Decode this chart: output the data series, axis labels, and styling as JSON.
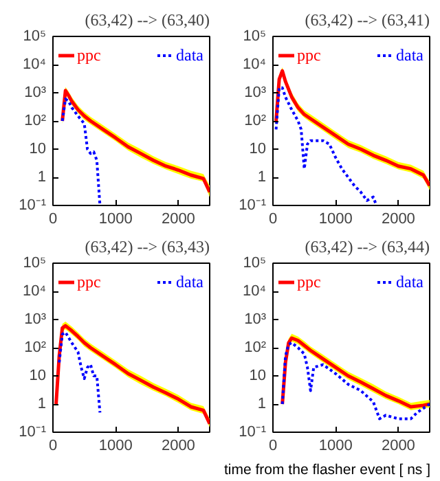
{
  "chart_data": [
    {
      "type": "line",
      "title": "(63,42) --> (63,40)",
      "xlim": [
        0,
        2500
      ],
      "xticks": [
        0,
        1000,
        2000
      ],
      "ylim": [
        0.1,
        100000
      ],
      "log": true,
      "legend": "top",
      "grid": false,
      "marker": "none",
      "yticks": [
        {
          "value": 0.1,
          "label": "10⁻¹"
        },
        1,
        10,
        {
          "value": 100,
          "label": "10²"
        },
        {
          "value": 1000,
          "label": "10³"
        },
        {
          "value": 10000,
          "label": "10⁴"
        },
        {
          "value": 100000,
          "label": "10⁵"
        }
      ],
      "series": [
        {
          "name": "ppc",
          "color": "#ff0000",
          "line_style": "solid",
          "x": [
            150,
            200,
            250,
            300,
            400,
            500,
            600,
            800,
            1000,
            1200,
            1400,
            1600,
            1800,
            2000,
            2200,
            2400,
            2500
          ],
          "values": [
            100,
            1200,
            800,
            500,
            250,
            150,
            100,
            50,
            25,
            12,
            7,
            4,
            2.5,
            1.8,
            1.2,
            0.9,
            0.3
          ],
          "upper": [
            140,
            1600,
            1100,
            700,
            350,
            210,
            140,
            70,
            35,
            17,
            10,
            5.6,
            3.5,
            2.5,
            1.7,
            1.3,
            0.5
          ],
          "lower": [
            75,
            900,
            600,
            380,
            190,
            110,
            75,
            38,
            19,
            9,
            5,
            3,
            1.9,
            1.3,
            0.9,
            0.7,
            0.2
          ]
        },
        {
          "name": "data",
          "color": "#0000ff",
          "line_style": "dotted",
          "x": [
            150,
            200,
            250,
            300,
            400,
            500,
            550,
            600,
            650,
            700,
            750
          ],
          "values": [
            100,
            600,
            500,
            300,
            150,
            80,
            10,
            7,
            8,
            4,
            0.1
          ]
        }
      ]
    },
    {
      "type": "line",
      "title": "(63,42) --> (63,41)",
      "xlim": [
        0,
        2500
      ],
      "xticks": [
        0,
        1000,
        2000
      ],
      "ylim": [
        0.1,
        100000
      ],
      "log": true,
      "legend": "top",
      "grid": false,
      "marker": "none",
      "yticks": [
        {
          "value": 0.1,
          "label": "10⁻¹"
        },
        1,
        10,
        {
          "value": 100,
          "label": "10²"
        },
        {
          "value": 1000,
          "label": "10³"
        },
        {
          "value": 10000,
          "label": "10⁴"
        },
        {
          "value": 100000,
          "label": "10⁵"
        }
      ],
      "series": [
        {
          "name": "ppc",
          "color": "#ff0000",
          "line_style": "solid",
          "x": [
            50,
            100,
            150,
            200,
            300,
            400,
            500,
            600,
            800,
            1000,
            1200,
            1400,
            1600,
            1800,
            2000,
            2200,
            2400,
            2500
          ],
          "values": [
            100,
            3000,
            6000,
            2500,
            700,
            300,
            170,
            120,
            60,
            30,
            15,
            10,
            6,
            4,
            2.5,
            2,
            1.2,
            0.5
          ],
          "upper": [
            140,
            4200,
            8000,
            3500,
            1000,
            420,
            240,
            170,
            85,
            42,
            21,
            14,
            8.5,
            5.6,
            3.5,
            2.8,
            1.7,
            0.7
          ],
          "lower": [
            75,
            2200,
            4500,
            1900,
            520,
            220,
            130,
            90,
            45,
            22,
            11,
            7.5,
            4.5,
            3,
            1.9,
            1.5,
            0.9,
            0.35
          ]
        },
        {
          "name": "data",
          "color": "#0000ff",
          "line_style": "dotted",
          "x": [
            50,
            100,
            150,
            200,
            300,
            400,
            450,
            500,
            550,
            600,
            800,
            900,
            1000,
            1100,
            1200,
            1300,
            1400,
            1500,
            1600,
            1650
          ],
          "values": [
            50,
            1500,
            1500,
            700,
            250,
            100,
            50,
            2,
            15,
            20,
            20,
            15,
            5,
            2,
            1,
            0.5,
            0.3,
            0.15,
            0.2,
            0.1
          ]
        }
      ]
    },
    {
      "type": "line",
      "title": "(63,42) --> (63,43)",
      "xlim": [
        0,
        2500
      ],
      "xticks": [
        0,
        1000,
        2000
      ],
      "ylim": [
        0.1,
        100000
      ],
      "log": true,
      "legend": "top",
      "grid": false,
      "marker": "none",
      "yticks": [
        {
          "value": 0.1,
          "label": "10⁻¹"
        },
        1,
        10,
        {
          "value": 100,
          "label": "10²"
        },
        {
          "value": 1000,
          "label": "10³"
        },
        {
          "value": 10000,
          "label": "10⁴"
        },
        {
          "value": 100000,
          "label": "10⁵"
        }
      ],
      "series": [
        {
          "name": "ppc",
          "color": "#ff0000",
          "line_style": "solid",
          "x": [
            50,
            100,
            150,
            200,
            300,
            400,
            500,
            600,
            800,
            1000,
            1200,
            1400,
            1600,
            1800,
            2000,
            2200,
            2400,
            2500
          ],
          "values": [
            1,
            50,
            500,
            600,
            400,
            250,
            150,
            100,
            50,
            25,
            12,
            7,
            4,
            2.5,
            1.5,
            0.8,
            0.6,
            0.2
          ],
          "upper": [
            1.4,
            70,
            700,
            850,
            560,
            350,
            210,
            140,
            70,
            35,
            17,
            10,
            5.6,
            3.5,
            2.1,
            1.1,
            0.85,
            0.3
          ],
          "lower": [
            0.75,
            38,
            380,
            450,
            300,
            190,
            110,
            75,
            38,
            19,
            9,
            5,
            3,
            1.9,
            1.1,
            0.6,
            0.45,
            0.15
          ]
        },
        {
          "name": "data",
          "color": "#0000ff",
          "line_style": "dotted",
          "x": [
            100,
            150,
            200,
            300,
            400,
            450,
            500,
            550,
            600,
            650,
            700,
            750
          ],
          "values": [
            30,
            300,
            350,
            150,
            70,
            20,
            8,
            20,
            25,
            10,
            10,
            0.5
          ]
        }
      ]
    },
    {
      "type": "line",
      "title": "(63,42) --> (63,44)",
      "xlabel": "time from the flasher event [ ns ]",
      "xlim": [
        0,
        2500
      ],
      "xticks": [
        0,
        1000,
        2000
      ],
      "ylim": [
        0.1,
        100000
      ],
      "log": true,
      "legend": "top",
      "grid": false,
      "marker": "none",
      "yticks": [
        {
          "value": 0.1,
          "label": "10⁻¹"
        },
        1,
        10,
        {
          "value": 100,
          "label": "10²"
        },
        {
          "value": 1000,
          "label": "10³"
        },
        {
          "value": 10000,
          "label": "10⁴"
        },
        {
          "value": 100000,
          "label": "10⁵"
        }
      ],
      "series": [
        {
          "name": "ppc",
          "color": "#ff0000",
          "line_style": "solid",
          "x": [
            150,
            200,
            250,
            300,
            400,
            500,
            600,
            800,
            1000,
            1200,
            1400,
            1600,
            1800,
            2000,
            2200,
            2400,
            2500
          ],
          "values": [
            1,
            30,
            150,
            220,
            180,
            120,
            80,
            40,
            20,
            10,
            6,
            3.5,
            2,
            1.3,
            0.8,
            0.9,
            1
          ],
          "upper": [
            1.4,
            42,
            210,
            310,
            250,
            170,
            110,
            56,
            28,
            14,
            8.5,
            5,
            2.8,
            1.8,
            1.1,
            1.3,
            1.4
          ],
          "lower": [
            0.75,
            22,
            110,
            165,
            135,
            90,
            60,
            30,
            15,
            7.5,
            4.5,
            2.6,
            1.5,
            1,
            0.6,
            0.7,
            0.75
          ]
        },
        {
          "name": "data",
          "color": "#0000ff",
          "line_style": "dotted",
          "x": [
            150,
            200,
            250,
            300,
            400,
            500,
            550,
            600,
            650,
            800,
            1000,
            1200,
            1400,
            1600,
            1700,
            1800,
            2000,
            2200,
            2300,
            2500
          ],
          "values": [
            1,
            50,
            130,
            150,
            100,
            60,
            20,
            3,
            20,
            25,
            12,
            5,
            3,
            1.2,
            0.3,
            0.4,
            0.3,
            0.3,
            0.5,
            1
          ]
        }
      ]
    }
  ]
}
